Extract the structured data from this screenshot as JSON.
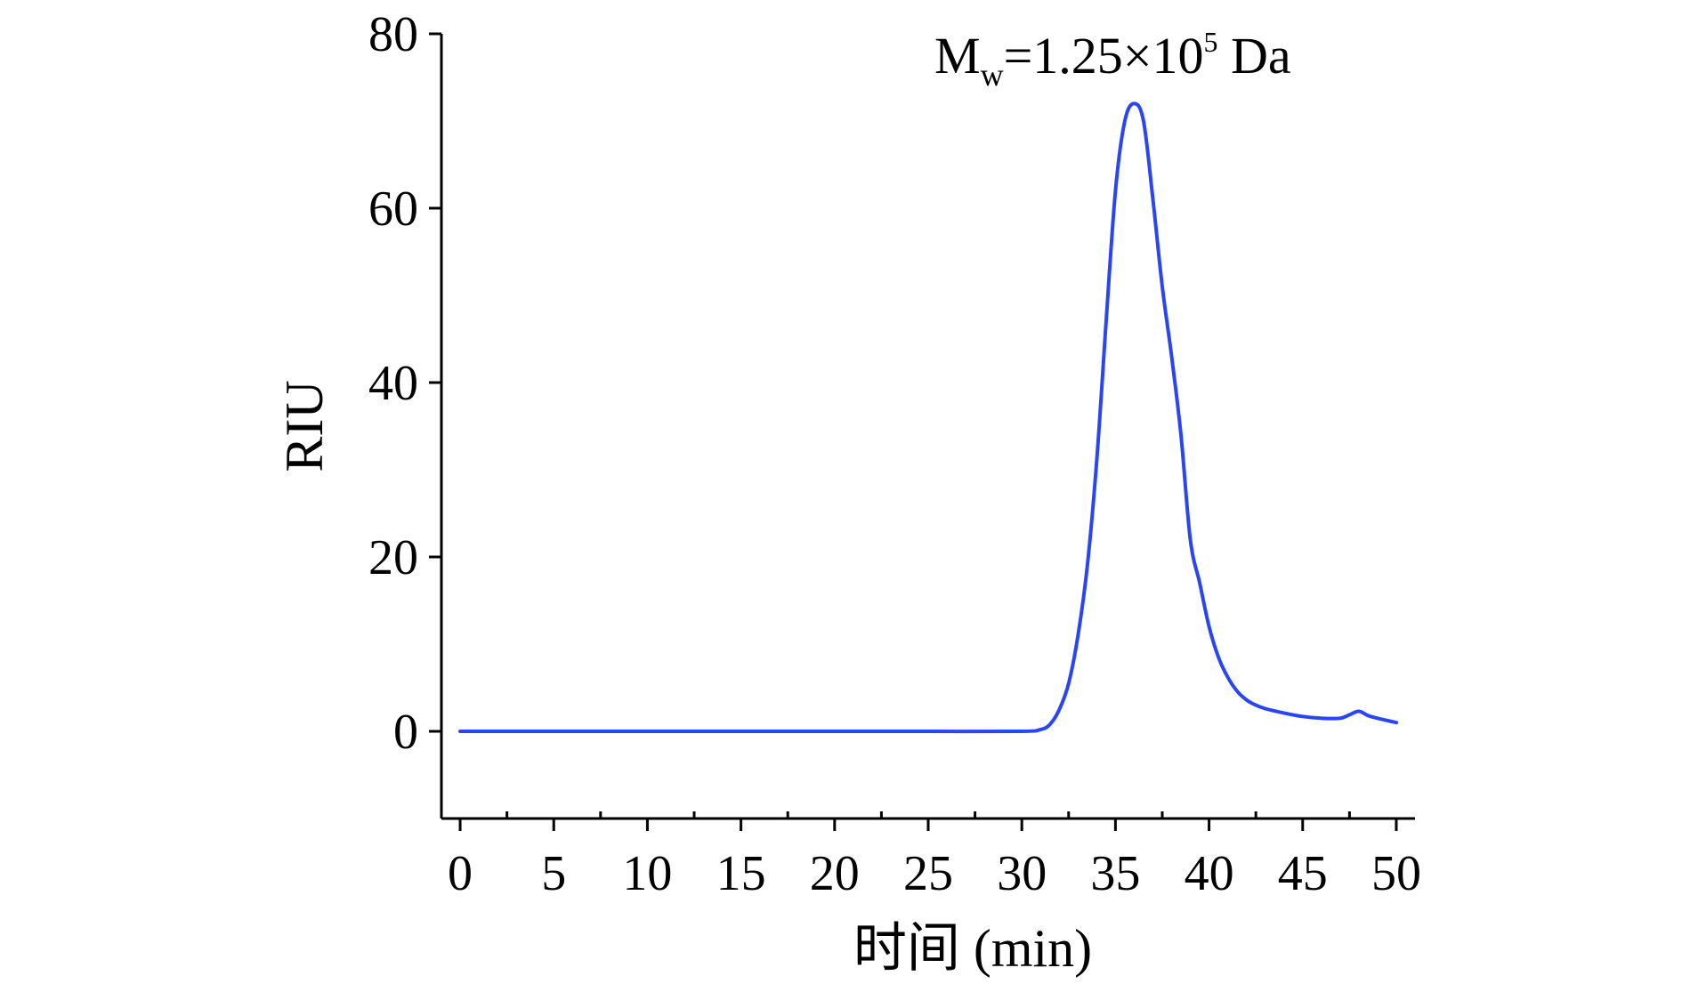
{
  "chart_data": {
    "type": "line",
    "title": "",
    "xlabel": "时间 (min)",
    "ylabel": "RIU",
    "xlim": [
      -1,
      51
    ],
    "ylim": [
      -10,
      80
    ],
    "xticks": [
      0,
      5,
      10,
      15,
      20,
      25,
      30,
      35,
      40,
      45,
      50
    ],
    "yticks": [
      0,
      20,
      40,
      60,
      80
    ],
    "xtick_labels": [
      "0",
      "5",
      "10",
      "15",
      "20",
      "25",
      "30",
      "35",
      "40",
      "45",
      "50"
    ],
    "ytick_labels": [
      "0",
      "20",
      "40",
      "60",
      "80"
    ],
    "grid": false,
    "legend": "none",
    "annotation": {
      "base": "M",
      "subscript": "w",
      "value": "=1.25×10",
      "superscript": "5",
      "unit": " Da"
    },
    "series": [
      {
        "color": "#2a45f5",
        "x": [
          0,
          5,
          10,
          15,
          20,
          25,
          30,
          31,
          31.5,
          32,
          32.5,
          33,
          33.5,
          34,
          34.5,
          35,
          35.5,
          36,
          36.5,
          37,
          37.5,
          38,
          38.5,
          39,
          39.5,
          40,
          40.5,
          41,
          41.5,
          42,
          42.5,
          43,
          44,
          45,
          46,
          47,
          47.5,
          48,
          48.5,
          49,
          50
        ],
        "y": [
          0,
          0,
          0,
          0,
          0,
          0,
          0,
          0.2,
          0.8,
          2.5,
          5.5,
          11,
          19,
          31,
          47,
          62,
          70,
          72,
          70,
          61,
          51,
          43,
          34,
          22,
          17,
          12,
          8.5,
          6.2,
          4.6,
          3.6,
          3.0,
          2.6,
          2.1,
          1.7,
          1.5,
          1.5,
          1.9,
          2.3,
          1.8,
          1.5,
          1.0
        ]
      }
    ]
  }
}
